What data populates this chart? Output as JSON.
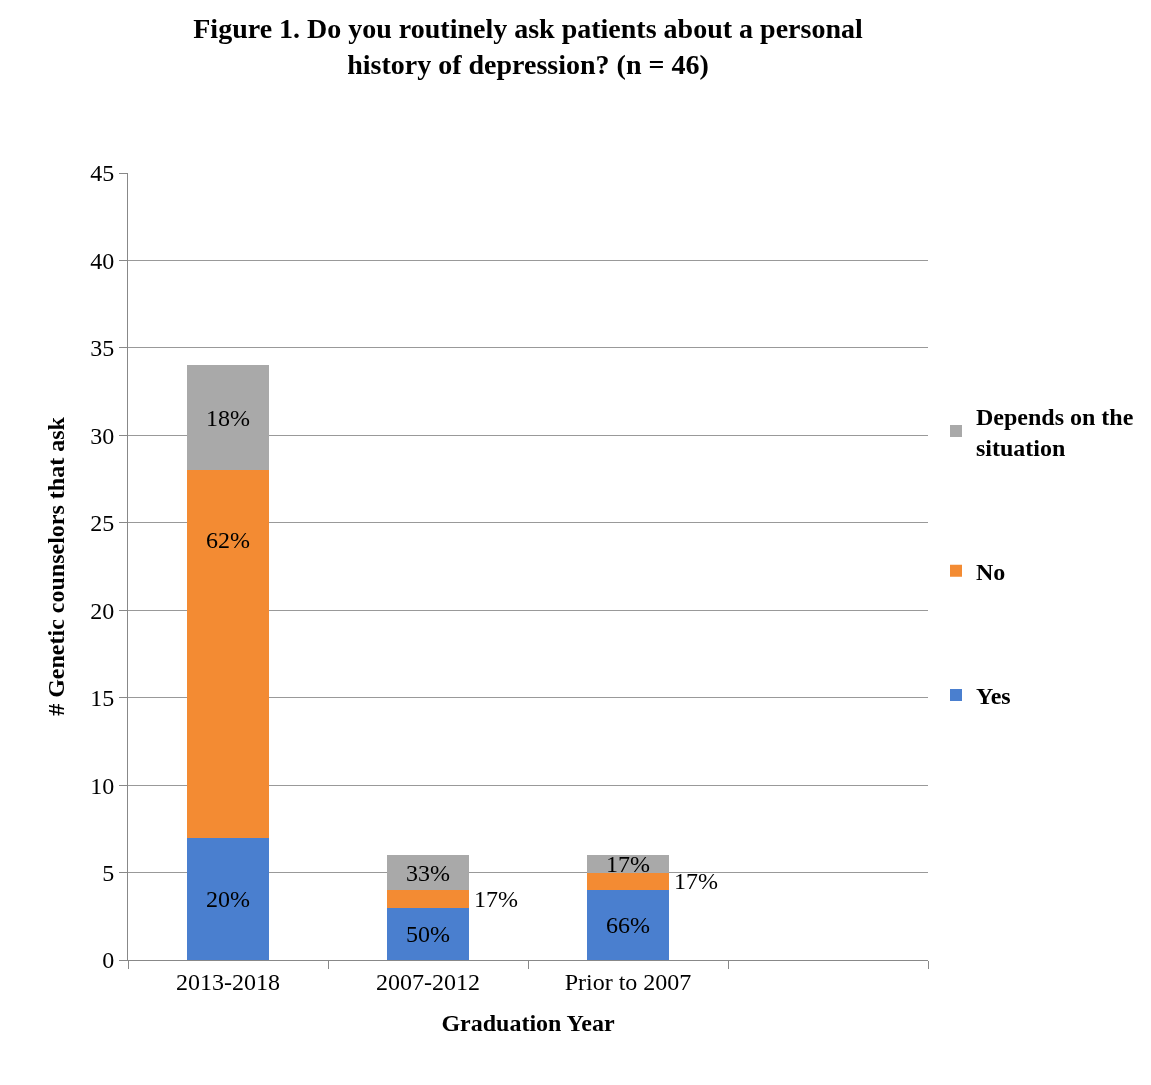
{
  "chart_data": {
    "type": "bar",
    "title": "Figure 1. Do you routinely ask patients about a personal history of depression? (n = 46)",
    "xlabel": "Graduation Year",
    "ylabel": "# Genetic counselors that ask",
    "categories": [
      "2013-2018",
      "2007-2012",
      "Prior to 2007",
      null
    ],
    "stacked": true,
    "series": [
      {
        "name": "Yes",
        "color": "#4a7fcf",
        "values": [
          7,
          3,
          4,
          null
        ]
      },
      {
        "name": "No",
        "color": "#f38b33",
        "values": [
          21,
          1,
          1,
          null
        ]
      },
      {
        "name": "Depends on the situation",
        "color": "#a9a9a9",
        "values": [
          6,
          2,
          1,
          null
        ]
      }
    ],
    "annotations": [
      {
        "text": "20%",
        "x": "2013-2018",
        "y": 7
      },
      {
        "text": "62%",
        "x": "2013-2018",
        "y": 28
      },
      {
        "text": "18%",
        "x": "2013-2018",
        "y": 34
      },
      {
        "text": "50%",
        "x": "2007-2012",
        "y": 3
      },
      {
        "text": "17%",
        "x": "2007-2012",
        "y": 4
      },
      {
        "text": "33%",
        "x": "2007-2012",
        "y": 6
      },
      {
        "text": "66%",
        "x": "Prior to 2007",
        "y": 4
      },
      {
        "text": "17%",
        "x": "Prior to 2007",
        "y": 5
      },
      {
        "text": "17%",
        "x": "Prior to 2007",
        "y": 6
      }
    ],
    "ylim": [
      0,
      45
    ],
    "yticks": [
      0,
      5,
      10,
      15,
      20,
      25,
      30,
      35,
      40,
      45
    ],
    "grid": "y",
    "legend": "right"
  }
}
